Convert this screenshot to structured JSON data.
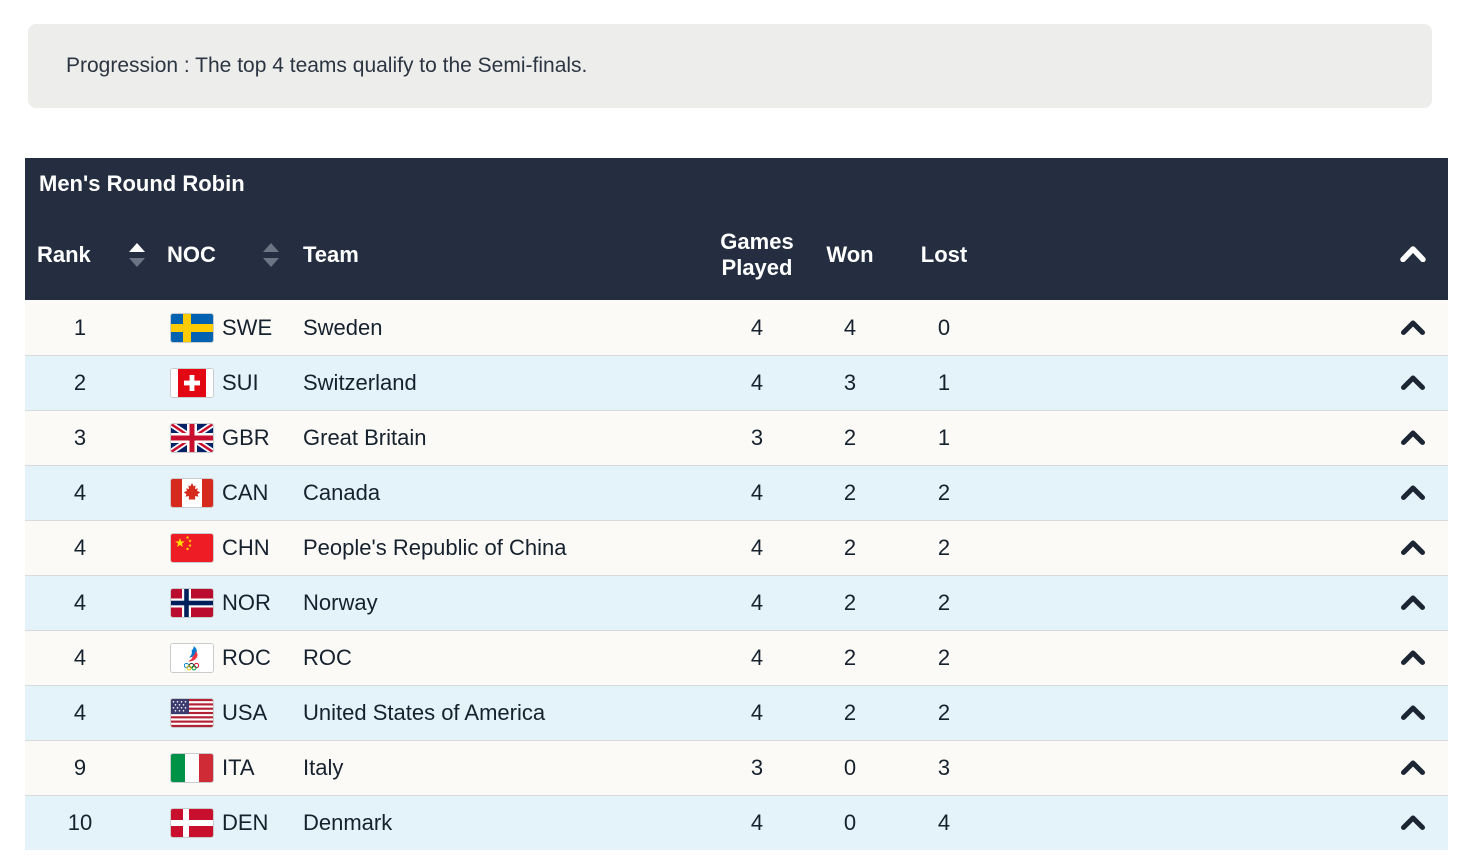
{
  "progression": {
    "text": "Progression : The top 4 teams qualify to the Semi-finals."
  },
  "table": {
    "title": "Men's Round Robin",
    "columns": {
      "rank": "Rank",
      "noc": "NOC",
      "team": "Team",
      "games_played": "Games Played",
      "won": "Won",
      "lost": "Lost"
    },
    "sorted": {
      "column": "rank",
      "direction": "asc"
    },
    "icons": {
      "sort": "sort-arrows",
      "header_collapse": "chevron-up",
      "row_expand": "chevron-up"
    },
    "rows": [
      {
        "rank": "1",
        "noc": "SWE",
        "team": "Sweden",
        "games_played": "4",
        "won": "4",
        "lost": "0",
        "flag": "swe"
      },
      {
        "rank": "2",
        "noc": "SUI",
        "team": "Switzerland",
        "games_played": "4",
        "won": "3",
        "lost": "1",
        "flag": "sui"
      },
      {
        "rank": "3",
        "noc": "GBR",
        "team": "Great Britain",
        "games_played": "3",
        "won": "2",
        "lost": "1",
        "flag": "gbr"
      },
      {
        "rank": "4",
        "noc": "CAN",
        "team": "Canada",
        "games_played": "4",
        "won": "2",
        "lost": "2",
        "flag": "can"
      },
      {
        "rank": "4",
        "noc": "CHN",
        "team": "People's Republic of China",
        "games_played": "4",
        "won": "2",
        "lost": "2",
        "flag": "chn"
      },
      {
        "rank": "4",
        "noc": "NOR",
        "team": "Norway",
        "games_played": "4",
        "won": "2",
        "lost": "2",
        "flag": "nor"
      },
      {
        "rank": "4",
        "noc": "ROC",
        "team": "ROC",
        "games_played": "4",
        "won": "2",
        "lost": "2",
        "flag": "roc"
      },
      {
        "rank": "4",
        "noc": "USA",
        "team": "United States of America",
        "games_played": "4",
        "won": "2",
        "lost": "2",
        "flag": "usa"
      },
      {
        "rank": "9",
        "noc": "ITA",
        "team": "Italy",
        "games_played": "3",
        "won": "0",
        "lost": "3",
        "flag": "ita"
      },
      {
        "rank": "10",
        "noc": "DEN",
        "team": "Denmark",
        "games_played": "4",
        "won": "0",
        "lost": "4",
        "flag": "den"
      }
    ],
    "colors": {
      "header_bg": "#242e40",
      "header_text": "#ffffff",
      "row_bg": "#fbfaf7",
      "row_alt_bg": "#e4f2f9",
      "body_text": "#16212e",
      "progression_bg": "#ededeb"
    }
  }
}
